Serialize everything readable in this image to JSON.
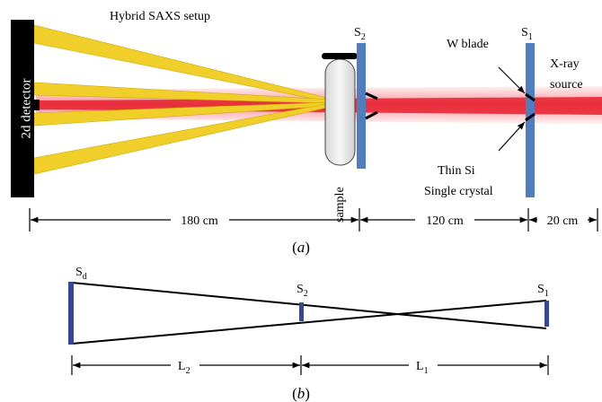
{
  "panel_a": {
    "title": "Hybrid SAXS setup",
    "detector": "2d detector",
    "sample": "sample",
    "slit_2": {
      "base": "S",
      "sub": "2"
    },
    "slit_1": {
      "base": "S",
      "sub": "1"
    },
    "w_blade": "W blade",
    "source": [
      "X-ray",
      "source"
    ],
    "crystal": [
      "Thin Si",
      "Single crystal"
    ],
    "distances": [
      "180 cm",
      "120 cm",
      "20 cm"
    ],
    "caption": "a"
  },
  "panel_b": {
    "slit_d": {
      "base": "S",
      "sub": "d"
    },
    "slit_2": {
      "base": "S",
      "sub": "2"
    },
    "slit_1": {
      "base": "S",
      "sub": "1"
    },
    "length_2": {
      "base": "L",
      "sub": "2"
    },
    "length_1": {
      "base": "L",
      "sub": "1"
    },
    "caption": "b"
  }
}
